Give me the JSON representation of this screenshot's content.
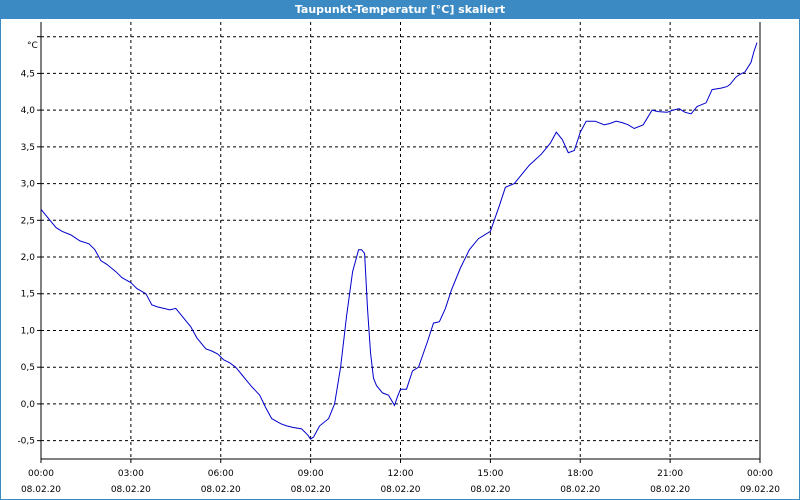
{
  "window": {
    "title": "Taupunkt-Temperatur [°C] skaliert"
  },
  "chart_data": {
    "type": "line",
    "title": "Taupunkt-Temperatur [°C] skaliert",
    "ylabel": "°C",
    "xlabel": "",
    "xlim": [
      0,
      24
    ],
    "ylim": [
      -0.75,
      5.2
    ],
    "grid": true,
    "legend": "none",
    "line_color": "#0000cc",
    "y_ticks": [
      {
        "value": -0.5,
        "label": "-0,5"
      },
      {
        "value": 0.0,
        "label": "0,0"
      },
      {
        "value": 0.5,
        "label": "0,5"
      },
      {
        "value": 1.0,
        "label": "1,0"
      },
      {
        "value": 1.5,
        "label": "1,5"
      },
      {
        "value": 2.0,
        "label": "2,0"
      },
      {
        "value": 2.5,
        "label": "2,5"
      },
      {
        "value": 3.0,
        "label": "3,0"
      },
      {
        "value": 3.5,
        "label": "3,5"
      },
      {
        "value": 4.0,
        "label": "4,0"
      },
      {
        "value": 4.5,
        "label": "4,5"
      },
      {
        "value": 5.0,
        "label": ""
      }
    ],
    "x_ticks": [
      {
        "value": 0,
        "time": "00:00",
        "date": "08.02.20"
      },
      {
        "value": 3,
        "time": "03:00",
        "date": "08.02.20"
      },
      {
        "value": 6,
        "time": "06:00",
        "date": "08.02.20"
      },
      {
        "value": 9,
        "time": "09:00",
        "date": "08.02.20"
      },
      {
        "value": 12,
        "time": "12:00",
        "date": "08.02.20"
      },
      {
        "value": 15,
        "time": "15:00",
        "date": "08.02.20"
      },
      {
        "value": 18,
        "time": "18:00",
        "date": "08.02.20"
      },
      {
        "value": 21,
        "time": "21:00",
        "date": "08.02.20"
      },
      {
        "value": 24,
        "time": "00:00",
        "date": "09.02.20"
      }
    ],
    "series": [
      {
        "x": [
          0,
          0.3,
          0.5,
          0.7,
          1.0,
          1.3,
          1.6,
          1.8,
          2.0,
          2.2,
          2.5,
          2.7,
          3.0,
          3.2,
          3.5,
          3.7,
          3.9,
          4.1,
          4.3,
          4.5,
          4.7,
          5.0,
          5.2,
          5.5,
          5.7,
          5.9,
          6.1,
          6.3,
          6.5,
          6.7,
          7.0,
          7.3,
          7.5,
          7.7,
          8.0,
          8.2,
          8.4,
          8.7,
          8.9,
          9.0,
          9.1,
          9.3,
          9.6,
          9.8,
          10.0,
          10.2,
          10.4,
          10.6,
          10.7,
          10.8,
          10.9,
          11.0,
          11.1,
          11.2,
          11.4,
          11.6,
          11.8,
          11.9,
          12.0,
          12.2,
          12.4,
          12.6,
          12.9,
          13.1,
          13.3,
          13.5,
          13.7,
          14.0,
          14.3,
          14.6,
          15.0,
          15.3,
          15.5,
          15.8,
          16.0,
          16.3,
          16.7,
          17.0,
          17.2,
          17.4,
          17.6,
          17.8,
          18.0,
          18.2,
          18.5,
          18.8,
          19.0,
          19.2,
          19.4,
          19.6,
          19.8,
          20.1,
          20.4,
          20.6,
          20.9,
          21.1,
          21.3,
          21.5,
          21.7,
          21.9,
          22.2,
          22.4,
          22.7,
          22.9,
          23.0,
          23.2,
          23.3,
          23.5,
          23.7,
          23.8,
          23.9
        ],
        "y": [
          2.65,
          2.5,
          2.4,
          2.35,
          2.3,
          2.22,
          2.18,
          2.1,
          1.95,
          1.9,
          1.8,
          1.72,
          1.65,
          1.57,
          1.5,
          1.35,
          1.32,
          1.3,
          1.28,
          1.3,
          1.2,
          1.05,
          0.9,
          0.75,
          0.72,
          0.68,
          0.6,
          0.56,
          0.5,
          0.4,
          0.25,
          0.12,
          -0.05,
          -0.2,
          -0.27,
          -0.3,
          -0.32,
          -0.34,
          -0.42,
          -0.48,
          -0.45,
          -0.3,
          -0.2,
          0.0,
          0.5,
          1.2,
          1.8,
          2.1,
          2.1,
          2.05,
          1.3,
          0.7,
          0.35,
          0.25,
          0.15,
          0.12,
          -0.02,
          0.1,
          0.2,
          0.2,
          0.45,
          0.5,
          0.85,
          1.1,
          1.12,
          1.3,
          1.55,
          1.85,
          2.1,
          2.25,
          2.35,
          2.7,
          2.95,
          3.0,
          3.1,
          3.25,
          3.4,
          3.55,
          3.7,
          3.6,
          3.42,
          3.45,
          3.7,
          3.85,
          3.85,
          3.8,
          3.82,
          3.85,
          3.83,
          3.8,
          3.75,
          3.8,
          4.0,
          3.98,
          3.97,
          4.0,
          4.02,
          3.97,
          3.95,
          4.05,
          4.1,
          4.28,
          4.3,
          4.32,
          4.35,
          4.45,
          4.48,
          4.52,
          4.65,
          4.8,
          4.92
        ]
      }
    ]
  }
}
